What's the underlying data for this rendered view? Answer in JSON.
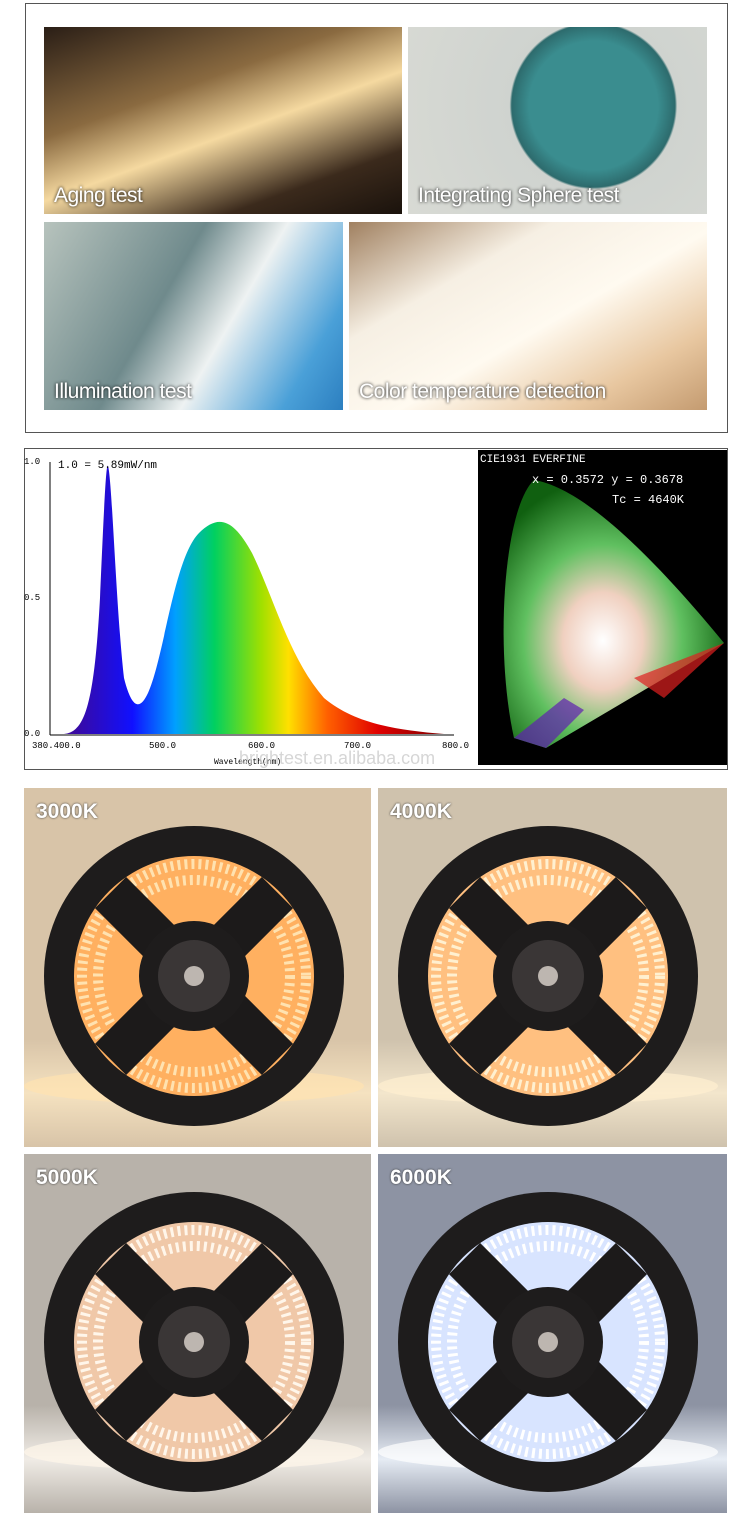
{
  "photos": [
    "Aging test",
    "Integrating Sphere test",
    "Illumination test",
    "Color temperature detection"
  ],
  "spectrum": {
    "scale_note": "1.0 = 5.89mW/nm",
    "y_labels": [
      "1.0",
      "0.5",
      "0.0"
    ],
    "x_labels": [
      "380.400.0",
      "500.0",
      "600.0",
      "700.0",
      "800.0"
    ],
    "x_title": "Wavelength(nm)"
  },
  "cie": {
    "title": "CIE1931 EVERFINE",
    "coords": "x = 0.3572 y = 0.3678",
    "tc": "Tc = 4640K"
  },
  "watermark": "brightest.en.alibaba.com",
  "color_temps": [
    "3000K",
    "4000K",
    "5000K",
    "6000K"
  ]
}
